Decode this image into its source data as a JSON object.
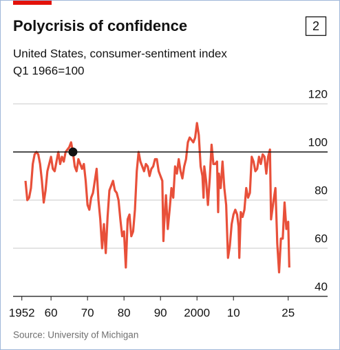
{
  "chart_data": {
    "type": "line",
    "title": "Polycrisis of confidence",
    "chart_number": "2",
    "subtitle": "United States, consumer-sentiment index",
    "subtitle2": "Q1 1966=100",
    "source": "Source: University of Michigan",
    "x": [
      1953.0,
      1953.5,
      1954.0,
      1954.5,
      1955.0,
      1955.5,
      1956.0,
      1956.5,
      1957.0,
      1957.5,
      1958.0,
      1958.5,
      1959.0,
      1959.5,
      1960.0,
      1960.5,
      1961.0,
      1961.5,
      1962.0,
      1962.5,
      1963.0,
      1963.5,
      1964.0,
      1964.5,
      1965.0,
      1965.5,
      1966.0,
      1966.5,
      1967.0,
      1967.5,
      1968.0,
      1968.5,
      1969.0,
      1969.5,
      1970.0,
      1970.5,
      1971.0,
      1971.5,
      1972.0,
      1972.5,
      1973.0,
      1973.5,
      1974.0,
      1974.5,
      1975.0,
      1975.5,
      1976.0,
      1976.5,
      1977.0,
      1977.5,
      1978.0,
      1978.5,
      1979.0,
      1979.5,
      1980.0,
      1980.5,
      1981.0,
      1981.5,
      1982.0,
      1982.5,
      1983.0,
      1983.5,
      1984.0,
      1984.5,
      1985.0,
      1985.5,
      1986.0,
      1986.5,
      1987.0,
      1987.5,
      1988.0,
      1988.5,
      1989.0,
      1989.5,
      1990.0,
      1990.5,
      1990.8,
      1991.0,
      1991.5,
      1992.0,
      1992.5,
      1993.0,
      1993.5,
      1994.0,
      1994.5,
      1995.0,
      1995.5,
      1996.0,
      1996.5,
      1997.0,
      1997.5,
      1998.0,
      1998.5,
      1999.0,
      1999.5,
      2000.0,
      2000.5,
      2001.0,
      2001.5,
      2001.8,
      2002.0,
      2002.5,
      2003.0,
      2003.5,
      2004.0,
      2004.5,
      2005.0,
      2005.5,
      2005.8,
      2006.0,
      2006.5,
      2007.0,
      2007.5,
      2008.0,
      2008.5,
      2009.0,
      2009.5,
      2010.0,
      2010.5,
      2011.0,
      2011.4,
      2011.6,
      2012.0,
      2012.5,
      2013.0,
      2013.5,
      2014.0,
      2014.5,
      2015.0,
      2015.5,
      2016.0,
      2016.5,
      2017.0,
      2017.5,
      2018.0,
      2018.5,
      2019.0,
      2019.5,
      2020.0,
      2020.3,
      2021.0,
      2021.5,
      2021.9,
      2022.0,
      2022.5,
      2023.0,
      2023.5,
      2024.0,
      2024.5,
      2025.0,
      2025.3
    ],
    "series": [
      {
        "name": "Consumer-sentiment index",
        "color": "#e8503a",
        "values": [
          88,
          80,
          81,
          85,
          95,
          99,
          100,
          99,
          95,
          88,
          79,
          84,
          92,
          95,
          98,
          93,
          92,
          96,
          100,
          95,
          98,
          96,
          100,
          101,
          102,
          104,
          100,
          94,
          92,
          97,
          95,
          93,
          95,
          88,
          78,
          76,
          81,
          83,
          88,
          93,
          80,
          72,
          60,
          70,
          58,
          73,
          84,
          86,
          88,
          84,
          83,
          80,
          72,
          65,
          67,
          52,
          72,
          74,
          65,
          67,
          76,
          92,
          100,
          96,
          94,
          92,
          95,
          94,
          90,
          93,
          94,
          97,
          97,
          92,
          90,
          88,
          63,
          70,
          82,
          68,
          76,
          85,
          81,
          94,
          91,
          97,
          92,
          89,
          94,
          97,
          104,
          106,
          105,
          104,
          106,
          112,
          107,
          94,
          90,
          81,
          94,
          88,
          78,
          89,
          103,
          95,
          95,
          96,
          75,
          91,
          85,
          96,
          85,
          78,
          56,
          61,
          70,
          74,
          76,
          74,
          69,
          56,
          75,
          73,
          76,
          85,
          81,
          83,
          98,
          96,
          92,
          93,
          98,
          95,
          99,
          98,
          91,
          98,
          101,
          72,
          80,
          85,
          67,
          62,
          50,
          64,
          64,
          79,
          68,
          71,
          52
        ]
      }
    ],
    "xlim": [
      1949.6,
      2035.8
    ],
    "xticks": [
      1952,
      {
        "value": 1960,
        "label": "60"
      },
      {
        "value": 1970,
        "label": "70"
      },
      {
        "value": 1980,
        "label": "80"
      },
      {
        "value": 1990,
        "label": "90"
      },
      2000,
      {
        "value": 2010,
        "label": "10"
      },
      {
        "value": 2025,
        "label": "25"
      }
    ],
    "ylim": [
      40,
      120
    ],
    "yticks": [
      40,
      60,
      80,
      100,
      120
    ],
    "reference_y": 100,
    "marker": {
      "x": 1966,
      "y": 100
    },
    "grid": true
  }
}
